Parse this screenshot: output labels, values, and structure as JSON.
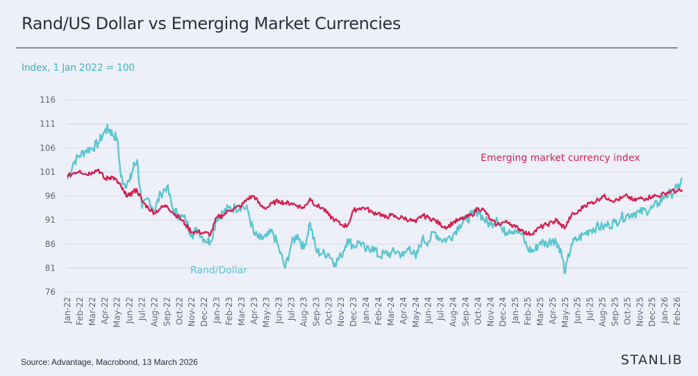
{
  "header": {
    "title": "Rand/US Dollar vs Emerging Market Currencies",
    "subtitle": "Index, 1 Jan 2022 = 100"
  },
  "footer": {
    "source": "Source: Advantage, Macrobond, 13 March 2026",
    "brand": "STANLIB"
  },
  "colors": {
    "rand": "#5bc5d0",
    "em": "#d6214f",
    "grid": "#d9dce6",
    "subtitle": "#3db5c0"
  },
  "chart_data": {
    "type": "line",
    "title": "Rand/US Dollar vs Emerging Market Currencies",
    "ylabel": "Index, 1 Jan 2022 = 100",
    "xlabel": "",
    "ylim": [
      76,
      116
    ],
    "yticks": [
      116,
      111,
      106,
      101,
      96,
      91,
      86,
      81,
      76
    ],
    "grid": true,
    "x_tick_labels": [
      "Jan-22",
      "Feb-22",
      "Mar-22",
      "Apr-22",
      "May-22",
      "Jun-22",
      "Jul-22",
      "Aug-22",
      "Sep-22",
      "Oct-22",
      "Nov-22",
      "Dec-22",
      "Jan-23",
      "Feb-23",
      "Mar-23",
      "Apr-23",
      "May-23",
      "Jun-23",
      "Jul-23",
      "Aug-23",
      "Sep-23",
      "Oct-23",
      "Nov-23",
      "Dec-23",
      "Jan-24",
      "Feb-24",
      "Mar-24",
      "Apr-24",
      "May-24",
      "Jun-24",
      "Jul-24",
      "Aug-24",
      "Sep-24",
      "Oct-24",
      "Nov-24",
      "Dec-24",
      "Jan-25",
      "Feb-25",
      "Mar-25",
      "Apr-25",
      "May-25",
      "Jun-25",
      "Jul-25",
      "Aug-25",
      "Sep-25",
      "Oct-25",
      "Nov-25",
      "Dec-25",
      "Jan-26",
      "Feb-26"
    ],
    "x_months": [
      0,
      0.5,
      1,
      1.5,
      2,
      2.5,
      3,
      3.3,
      3.6,
      4,
      4.3,
      4.6,
      5,
      5.3,
      5.6,
      6,
      6.5,
      7,
      7.5,
      8,
      8.5,
      9,
      9.5,
      10,
      10.5,
      11,
      11.5,
      12,
      12.5,
      13,
      13.5,
      14,
      14.5,
      15,
      15.5,
      16,
      16.5,
      17,
      17.5,
      18,
      18.5,
      19,
      19.5,
      20,
      20.5,
      21,
      21.5,
      22,
      22.5,
      23,
      23.5,
      24,
      24.5,
      25,
      25.5,
      26,
      26.5,
      27,
      27.5,
      28,
      28.5,
      29,
      29.5,
      30,
      30.5,
      31,
      31.5,
      32,
      32.5,
      33,
      33.5,
      34,
      34.5,
      35,
      35.5,
      36,
      36.5,
      37,
      37.5,
      38,
      38.5,
      39,
      39.3,
      39.6,
      40,
      40.5,
      41,
      41.5,
      42,
      42.5,
      43,
      43.5,
      44,
      44.5,
      45,
      45.5,
      46,
      46.5,
      47,
      47.5,
      48,
      48.5,
      49,
      49.5
    ],
    "series": [
      {
        "name": "Rand/Dollar",
        "label": "Rand/Dollar",
        "values": [
          99.5,
          103,
          104.5,
          105.5,
          106,
          107,
          109.5,
          110,
          109,
          108,
          100,
          98.5,
          99,
          102,
          103.5,
          93.5,
          95.5,
          93,
          96.5,
          98,
          93,
          92,
          91,
          88,
          89,
          87,
          86.5,
          91.5,
          92.5,
          93.5,
          93.5,
          94,
          93,
          88,
          87,
          87.5,
          88.5,
          85,
          81,
          86,
          88,
          85,
          90.5,
          84.5,
          84,
          84,
          82,
          83.5,
          87,
          85.5,
          86.5,
          84.5,
          85.5,
          83.5,
          84,
          84,
          84.5,
          83.5,
          85.5,
          83,
          87,
          86.5,
          88.5,
          87,
          87,
          88,
          90,
          91,
          92,
          93,
          91,
          90,
          91.5,
          88.5,
          89,
          89,
          88,
          85,
          84.5,
          86.5,
          86,
          87,
          86.5,
          85,
          80,
          86,
          87,
          88,
          89,
          89.5,
          89.5,
          90,
          90.5,
          91.5,
          92,
          92.5,
          92.5,
          93,
          93.5,
          94.5,
          96,
          96.5,
          97.5,
          100,
          99.5,
          100
        ],
        "end_value": 100
      },
      {
        "name": "Emerging market currency index",
        "label": "Emerging market currency index",
        "values": [
          100,
          100.8,
          101.3,
          100.5,
          101,
          101.5,
          99.5,
          99.8,
          100,
          99,
          98,
          96.5,
          96,
          97,
          97.2,
          95,
          93.5,
          92.5,
          93.5,
          94,
          92.5,
          91.5,
          90,
          88.5,
          88.5,
          88.3,
          88,
          91.5,
          92,
          93,
          93.5,
          94,
          95.5,
          96,
          94,
          93.5,
          94.5,
          95,
          94.5,
          94.5,
          94,
          93.5,
          95.5,
          94,
          93.5,
          92,
          91,
          90,
          89.8,
          93,
          93.5,
          93.5,
          92.5,
          92.5,
          91.5,
          92,
          91.5,
          91.5,
          91,
          90.5,
          92,
          91.5,
          91,
          90,
          89.5,
          90.5,
          91,
          91.5,
          92,
          93.5,
          93,
          91,
          90,
          90.5,
          90.5,
          89.5,
          89,
          88,
          88.5,
          89.5,
          90,
          90.5,
          91,
          90,
          89.5,
          92,
          92.5,
          94,
          94.5,
          95,
          96,
          95.5,
          95,
          95.5,
          96,
          95,
          95.5,
          95.5,
          96,
          96,
          96.5,
          97,
          97,
          97,
          98.5,
          98,
          98.5
        ],
        "end_value": 98.5
      }
    ],
    "annotations": [
      {
        "text": "Emerging market currency index",
        "series": "Emerging market currency index"
      },
      {
        "text": "Rand/Dollar",
        "series": "Rand/Dollar"
      }
    ],
    "legend": "inline-labels"
  }
}
